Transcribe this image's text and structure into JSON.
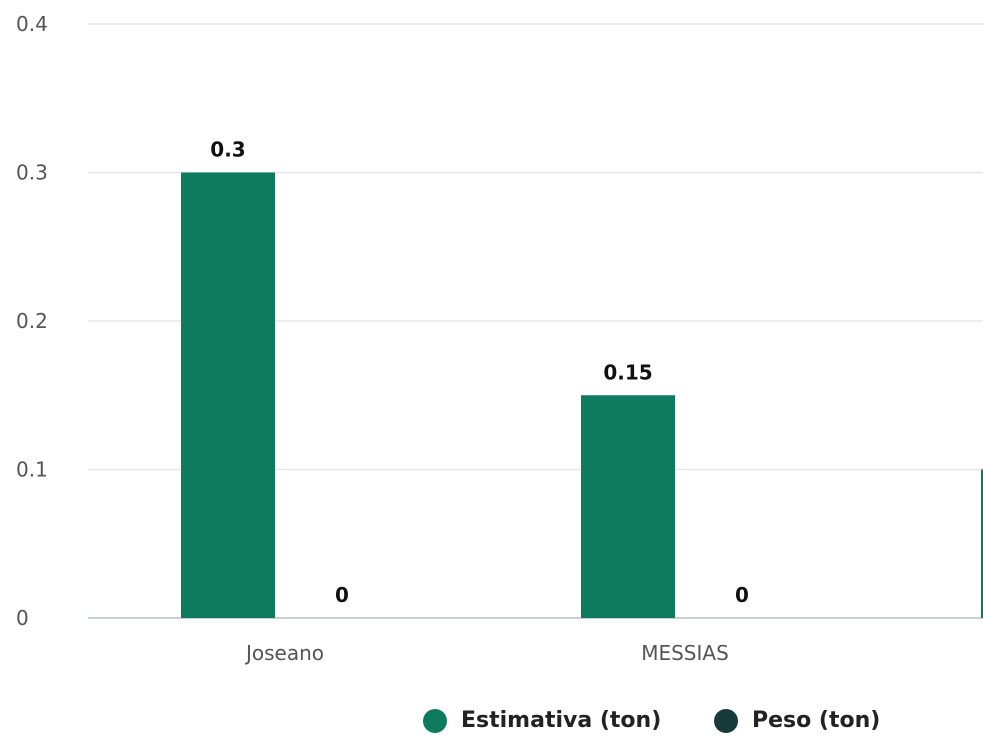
{
  "chart_data": {
    "type": "bar",
    "categories": [
      "Joseano",
      "MESSIAS",
      ""
    ],
    "series": [
      {
        "name": "Estimativa (ton)",
        "values": [
          0.3,
          0.15,
          0.1
        ],
        "color": "#0e7a5e"
      },
      {
        "name": "Peso (ton)",
        "values": [
          0,
          0,
          null
        ],
        "color": "#173a3a"
      }
    ],
    "data_labels": [
      {
        "series": 0,
        "index": 0,
        "text": "0.3"
      },
      {
        "series": 1,
        "index": 0,
        "text": "0"
      },
      {
        "series": 0,
        "index": 1,
        "text": "0.15"
      },
      {
        "series": 1,
        "index": 1,
        "text": "0"
      }
    ],
    "ylim": [
      0,
      0.4
    ],
    "yticks": [
      "0",
      "0.1",
      "0.2",
      "0.3",
      "0.4"
    ],
    "grid": true,
    "legend_position": "bottom-center"
  }
}
